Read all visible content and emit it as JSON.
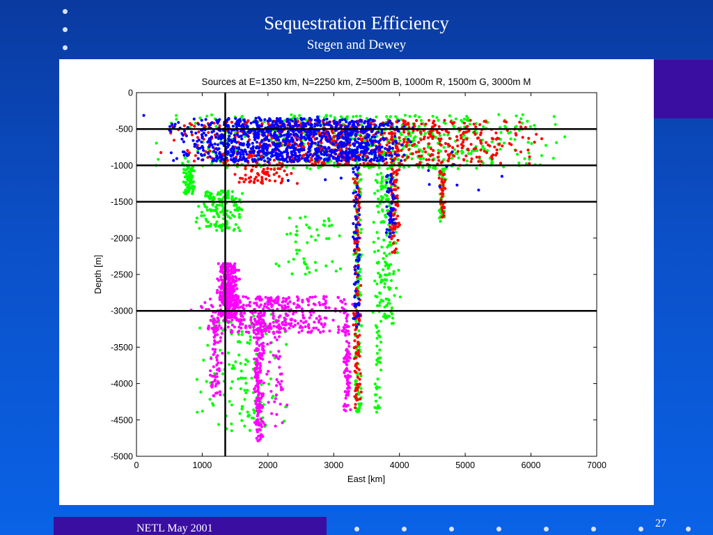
{
  "slide": {
    "title": "Sequestration Efficiency",
    "subtitle": "Stegen and Dewey",
    "footer": "NETL May 2001",
    "page_number": "27"
  },
  "colors": {
    "background": "#0b50c8",
    "accent": "#3a0ea0",
    "B": "#0000ff",
    "R": "#ff0000",
    "G": "#00ff00",
    "M": "#ff00ff"
  },
  "chart_data": {
    "type": "scatter",
    "title": "Sources at E=1350 km, N=2250 km, Z=500m B, 1000m R, 1500m G, 3000m M",
    "xlabel": "East [km]",
    "ylabel": "Depth [m]",
    "xlim": [
      0,
      7000
    ],
    "ylim": [
      -5000,
      0
    ],
    "xticks": [
      0,
      1000,
      2000,
      3000,
      4000,
      5000,
      6000,
      7000
    ],
    "yticks": [
      0,
      -500,
      -1000,
      -1500,
      -2000,
      -2500,
      -3000,
      -3500,
      -4000,
      -4500,
      -5000
    ],
    "reference_lines": {
      "horizontal_depths": [
        -500,
        -1000,
        -1500,
        -3000
      ],
      "vertical_east": 1350
    },
    "grid": false,
    "series": [
      {
        "color": "B",
        "clusters": [
          {
            "x": [
              700,
              3500
            ],
            "y": [
              -950,
              -350
            ],
            "n": 900
          },
          {
            "x": [
              2900,
              4000
            ],
            "y": [
              -950,
              -380
            ],
            "n": 250
          },
          {
            "x": [
              3300,
              3400
            ],
            "y": [
              -3300,
              -1000
            ],
            "n": 70
          },
          {
            "x": [
              3800,
              3950
            ],
            "y": [
              -2000,
              -1100
            ],
            "n": 50
          },
          {
            "x": [
              100,
              6600
            ],
            "y": [
              -1400,
              -300
            ],
            "n": 35
          }
        ]
      },
      {
        "color": "R",
        "clusters": [
          {
            "x": [
              800,
              5800
            ],
            "y": [
              -1000,
              -380
            ],
            "n": 800
          },
          {
            "x": [
              3300,
              3420
            ],
            "y": [
              -4350,
              -1100
            ],
            "n": 130
          },
          {
            "x": [
              3850,
              4000
            ],
            "y": [
              -2200,
              -1050
            ],
            "n": 80
          },
          {
            "x": [
              4600,
              4700
            ],
            "y": [
              -1750,
              -1050
            ],
            "n": 40
          },
          {
            "x": [
              1500,
              2400
            ],
            "y": [
              -1250,
              -1000
            ],
            "n": 60
          }
        ]
      },
      {
        "color": "G",
        "clusters": [
          {
            "x": [
              800,
              6200
            ],
            "y": [
              -1050,
              -300
            ],
            "n": 600
          },
          {
            "x": [
              720,
              880
            ],
            "y": [
              -1400,
              -1000
            ],
            "n": 70
          },
          {
            "x": [
              950,
              1600
            ],
            "y": [
              -1900,
              -1350
            ],
            "n": 150
          },
          {
            "x": [
              3300,
              3420
            ],
            "y": [
              -4400,
              -1100
            ],
            "n": 140
          },
          {
            "x": [
              3600,
              4000
            ],
            "y": [
              -3200,
              -1100
            ],
            "n": 170
          },
          {
            "x": [
              3620,
              3720
            ],
            "y": [
              -4400,
              -3200
            ],
            "n": 40
          },
          {
            "x": [
              1000,
              2300
            ],
            "y": [
              -4650,
              -3000
            ],
            "n": 140
          },
          {
            "x": [
              2100,
              3100
            ],
            "y": [
              -2500,
              -1700
            ],
            "n": 50
          },
          {
            "x": [
              4600,
              4700
            ],
            "y": [
              -1800,
              -1050
            ],
            "n": 40
          }
        ]
      },
      {
        "color": "M",
        "clusters": [
          {
            "x": [
              1250,
              1550
            ],
            "y": [
              -3100,
              -2350
            ],
            "n": 320
          },
          {
            "x": [
              1000,
              3200
            ],
            "y": [
              -3300,
              -2800
            ],
            "n": 380
          },
          {
            "x": [
              1100,
              1300
            ],
            "y": [
              -4200,
              -3000
            ],
            "n": 70
          },
          {
            "x": [
              1800,
              1950
            ],
            "y": [
              -4800,
              -3000
            ],
            "n": 180
          },
          {
            "x": [
              3150,
              3250
            ],
            "y": [
              -4400,
              -3000
            ],
            "n": 80
          },
          {
            "x": [
              1950,
              2300
            ],
            "y": [
              -4600,
              -3100
            ],
            "n": 40
          }
        ]
      }
    ]
  }
}
